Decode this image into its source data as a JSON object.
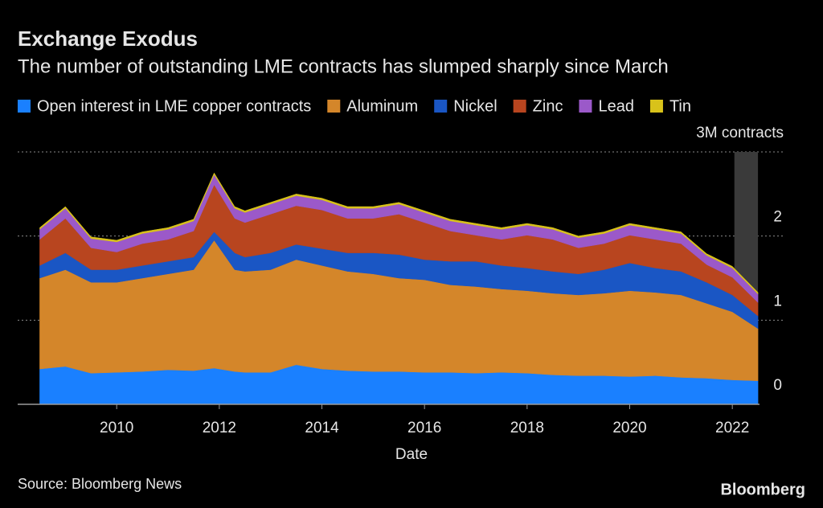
{
  "chart_data": {
    "type": "stacked_area",
    "title": "Exchange Exodus",
    "subtitle": "The number of outstanding LME contracts has slumped sharply since March",
    "x_label": "Date",
    "source": "Source: Bloomberg News",
    "brand": "Bloomberg",
    "x": [
      2008.5,
      2009,
      2009.5,
      2010,
      2010.5,
      2011,
      2011.5,
      2011.9,
      2012.3,
      2012.5,
      2013,
      2013.5,
      2014,
      2014.5,
      2015,
      2015.5,
      2016,
      2016.5,
      2017,
      2017.5,
      2018,
      2018.5,
      2019,
      2019.5,
      2020,
      2020.5,
      2021,
      2021.5,
      2022,
      2022.5
    ],
    "xlim": [
      2008.07,
      2022.53
    ],
    "xticks": [
      2010,
      2012,
      2014,
      2016,
      2018,
      2020,
      2022
    ],
    "ylim": [
      0,
      3
    ],
    "yticks": [
      0,
      1,
      2,
      {
        "value": 3,
        "label": "3M contracts"
      }
    ],
    "grid": true,
    "shaded_x": [
      2022.04,
      2022.5
    ],
    "series": [
      {
        "name": "Open interest in LME copper contracts",
        "color": "#1a80ff",
        "values": [
          0.42,
          0.45,
          0.37,
          0.38,
          0.39,
          0.41,
          0.4,
          0.43,
          0.39,
          0.38,
          0.38,
          0.47,
          0.42,
          0.4,
          0.39,
          0.39,
          0.38,
          0.38,
          0.37,
          0.38,
          0.37,
          0.35,
          0.34,
          0.34,
          0.33,
          0.34,
          0.32,
          0.31,
          0.29,
          0.28
        ]
      },
      {
        "name": "Aluminum",
        "color": "#d4862a",
        "values": [
          1.08,
          1.15,
          1.08,
          1.07,
          1.11,
          1.14,
          1.2,
          1.52,
          1.21,
          1.2,
          1.22,
          1.25,
          1.23,
          1.18,
          1.16,
          1.11,
          1.1,
          1.04,
          1.03,
          0.99,
          0.98,
          0.97,
          0.96,
          0.98,
          1.02,
          0.99,
          0.98,
          0.89,
          0.81,
          0.62
        ]
      },
      {
        "name": "Nickel",
        "color": "#1a56c4",
        "values": [
          0.15,
          0.2,
          0.15,
          0.15,
          0.15,
          0.15,
          0.15,
          0.1,
          0.2,
          0.17,
          0.2,
          0.18,
          0.2,
          0.22,
          0.25,
          0.28,
          0.24,
          0.28,
          0.3,
          0.28,
          0.27,
          0.26,
          0.25,
          0.28,
          0.33,
          0.29,
          0.28,
          0.25,
          0.2,
          0.15
        ]
      },
      {
        "name": "Zinc",
        "color": "#b8451f",
        "values": [
          0.31,
          0.41,
          0.26,
          0.21,
          0.26,
          0.26,
          0.31,
          0.56,
          0.41,
          0.41,
          0.46,
          0.46,
          0.46,
          0.41,
          0.41,
          0.48,
          0.44,
          0.36,
          0.31,
          0.31,
          0.39,
          0.38,
          0.31,
          0.31,
          0.33,
          0.34,
          0.33,
          0.21,
          0.21,
          0.16
        ]
      },
      {
        "name": "Lead",
        "color": "#9b59c9",
        "values": [
          0.12,
          0.12,
          0.11,
          0.12,
          0.12,
          0.12,
          0.12,
          0.12,
          0.12,
          0.12,
          0.12,
          0.12,
          0.12,
          0.12,
          0.12,
          0.12,
          0.12,
          0.12,
          0.12,
          0.12,
          0.12,
          0.12,
          0.12,
          0.12,
          0.12,
          0.12,
          0.12,
          0.11,
          0.11,
          0.1
        ]
      },
      {
        "name": "Tin",
        "color": "#d8c21a",
        "values": [
          0.02,
          0.02,
          0.02,
          0.02,
          0.02,
          0.02,
          0.02,
          0.02,
          0.02,
          0.02,
          0.02,
          0.02,
          0.02,
          0.02,
          0.02,
          0.02,
          0.02,
          0.02,
          0.02,
          0.02,
          0.02,
          0.02,
          0.02,
          0.02,
          0.02,
          0.02,
          0.02,
          0.02,
          0.02,
          0.02
        ]
      }
    ]
  }
}
